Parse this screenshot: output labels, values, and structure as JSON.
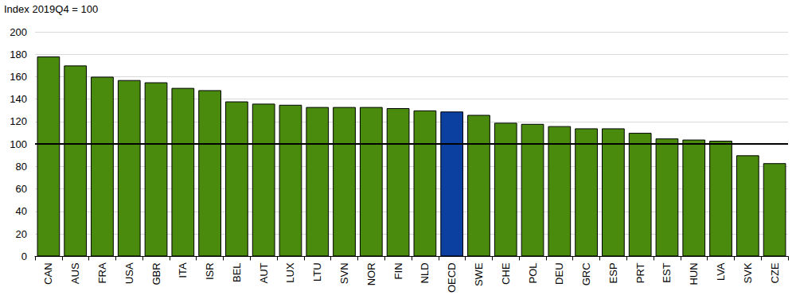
{
  "chart_data": {
    "type": "bar",
    "ylabel": "Index 2019Q4 = 100",
    "categories": [
      "CAN",
      "AUS",
      "FRA",
      "USA",
      "GBR",
      "ITA",
      "ISR",
      "BEL",
      "AUT",
      "LUX",
      "LTU",
      "SVN",
      "NOR",
      "FIN",
      "NLD",
      "OECD",
      "SWE",
      "CHE",
      "POL",
      "DEU",
      "GRC",
      "ESP",
      "PRT",
      "EST",
      "HUN",
      "LVA",
      "SVK",
      "CZE"
    ],
    "values": [
      178,
      170,
      160,
      157,
      155,
      150,
      148,
      138,
      136,
      135,
      133,
      133,
      133,
      132,
      130,
      129,
      126,
      119,
      118,
      116,
      114,
      114,
      110,
      105,
      104,
      103,
      90,
      83
    ],
    "colors": [
      "#4a8b0e",
      "#4a8b0e",
      "#4a8b0e",
      "#4a8b0e",
      "#4a8b0e",
      "#4a8b0e",
      "#4a8b0e",
      "#4a8b0e",
      "#4a8b0e",
      "#4a8b0e",
      "#4a8b0e",
      "#4a8b0e",
      "#4a8b0e",
      "#4a8b0e",
      "#4a8b0e",
      "#0b3fa0",
      "#4a8b0e",
      "#4a8b0e",
      "#4a8b0e",
      "#4a8b0e",
      "#4a8b0e",
      "#4a8b0e",
      "#4a8b0e",
      "#4a8b0e",
      "#4a8b0e",
      "#4a8b0e",
      "#4a8b0e",
      "#4a8b0e"
    ],
    "ylim": [
      0,
      200
    ],
    "yticks": [
      0,
      20,
      40,
      60,
      80,
      100,
      120,
      140,
      160,
      180,
      200
    ],
    "reference_line": 100,
    "grid": true
  }
}
